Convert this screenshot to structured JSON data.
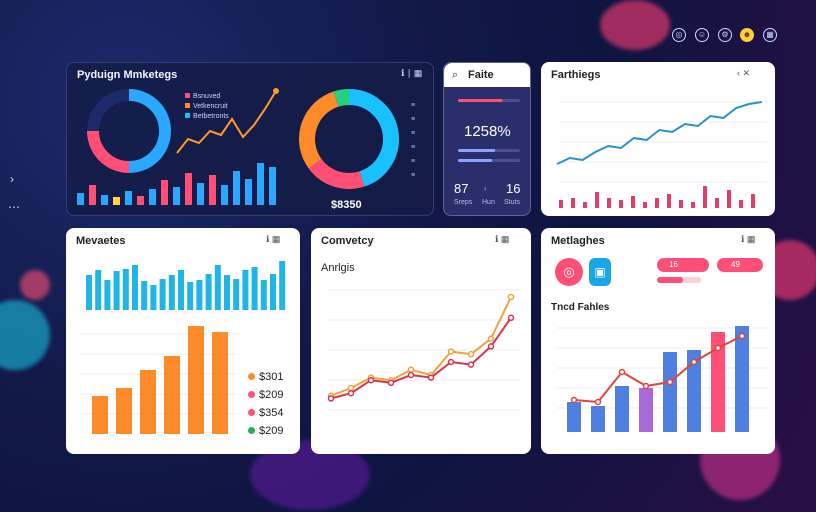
{
  "top_icons": [
    "target-icon",
    "user-icon",
    "settings-icon",
    "bell-icon",
    "grid-icon"
  ],
  "left_glyphs": {
    "chevron": "›",
    "dots": "⋯"
  },
  "panel1": {
    "title": "Pyduign Mmketegs",
    "legend": [
      "Bsnuved",
      "Vetkencruit",
      "Betbetronts"
    ],
    "value": "$8350",
    "donut1": [
      {
        "value": 50,
        "color": "#2aa7ff"
      },
      {
        "value": 25,
        "color": "#ff4f76"
      },
      {
        "value": 25,
        "color": "#1d2a6a"
      }
    ],
    "donut2": [
      {
        "value": 45,
        "color": "#19c2ff"
      },
      {
        "value": 20,
        "color": "#ff4f76"
      },
      {
        "value": 30,
        "color": "#ff8a2a"
      },
      {
        "value": 5,
        "color": "#26d07c"
      }
    ],
    "bars": [
      {
        "v": 12,
        "c": "#2aa7ff"
      },
      {
        "v": 20,
        "c": "#ff4f76"
      },
      {
        "v": 10,
        "c": "#2aa7ff"
      },
      {
        "v": 8,
        "c": "#ffd24a"
      },
      {
        "v": 14,
        "c": "#2aa7ff"
      },
      {
        "v": 9,
        "c": "#ff4f76"
      },
      {
        "v": 16,
        "c": "#2aa7ff"
      },
      {
        "v": 25,
        "c": "#ff4f76"
      },
      {
        "v": 18,
        "c": "#2aa7ff"
      },
      {
        "v": 32,
        "c": "#ff4f76"
      },
      {
        "v": 22,
        "c": "#2aa7ff"
      },
      {
        "v": 30,
        "c": "#ff4f76"
      },
      {
        "v": 20,
        "c": "#2aa7ff"
      },
      {
        "v": 34,
        "c": "#2aa7ff"
      },
      {
        "v": 26,
        "c": "#2aa7ff"
      },
      {
        "v": 42,
        "c": "#2aa7ff"
      },
      {
        "v": 38,
        "c": "#2aa7ff"
      }
    ],
    "line": [
      18,
      32,
      28,
      40,
      36,
      52,
      34,
      46,
      62,
      80
    ]
  },
  "panel2": {
    "title": "Faite",
    "stat": "1258%",
    "num_left": "87",
    "num_right": "16",
    "foot": [
      "Sreps",
      "Hun",
      "Stuts"
    ],
    "progress": [
      0.72,
      0.55,
      0.6
    ]
  },
  "panel3": {
    "title": "Farthiegs",
    "line": [
      10,
      16,
      14,
      22,
      28,
      26,
      36,
      34,
      44,
      42,
      50,
      48,
      58,
      56,
      66,
      70,
      72
    ],
    "bars": [
      8,
      10,
      6,
      16,
      10,
      8,
      12,
      6,
      10,
      14,
      8,
      6,
      22,
      10,
      18,
      8,
      14
    ]
  },
  "panel4": {
    "title": "Mevaetes",
    "bars_top": [
      70,
      80,
      60,
      78,
      82,
      90,
      58,
      50,
      62,
      70,
      80,
      56,
      60,
      72,
      90,
      70,
      62,
      80,
      86,
      60,
      72,
      98
    ],
    "bars_bottom": [
      38,
      46,
      64,
      78,
      108,
      102
    ],
    "legend": [
      {
        "text": "$301",
        "color": "#ff8a2a"
      },
      {
        "text": "$209",
        "color": "#ff4f76"
      },
      {
        "text": "$354",
        "color": "#ff4f76"
      },
      {
        "text": "$209",
        "color": "#26b05a"
      }
    ]
  },
  "panel5": {
    "title": "Comvetcy",
    "subtitle": "Anrlgis",
    "series1": [
      14,
      20,
      28,
      26,
      34,
      30,
      48,
      46,
      58,
      90
    ],
    "series2": [
      12,
      16,
      26,
      24,
      30,
      28,
      40,
      38,
      52,
      74
    ]
  },
  "panel6": {
    "title": "Metlaghes",
    "badge_left": "16",
    "badge_right": "49",
    "subtitle": "Tncd Fahles",
    "bars": [
      {
        "v": 30,
        "c": "#4f7fe0"
      },
      {
        "v": 26,
        "c": "#4f7fe0"
      },
      {
        "v": 46,
        "c": "#4f7fe0"
      },
      {
        "v": 44,
        "c": "#a96ad7"
      },
      {
        "v": 80,
        "c": "#4f7fe0"
      },
      {
        "v": 82,
        "c": "#4f7fe0"
      },
      {
        "v": 100,
        "c": "#ff4f76"
      },
      {
        "v": 106,
        "c": "#4f7fe0"
      }
    ],
    "line": [
      32,
      30,
      60,
      46,
      50,
      70,
      84,
      96
    ]
  }
}
